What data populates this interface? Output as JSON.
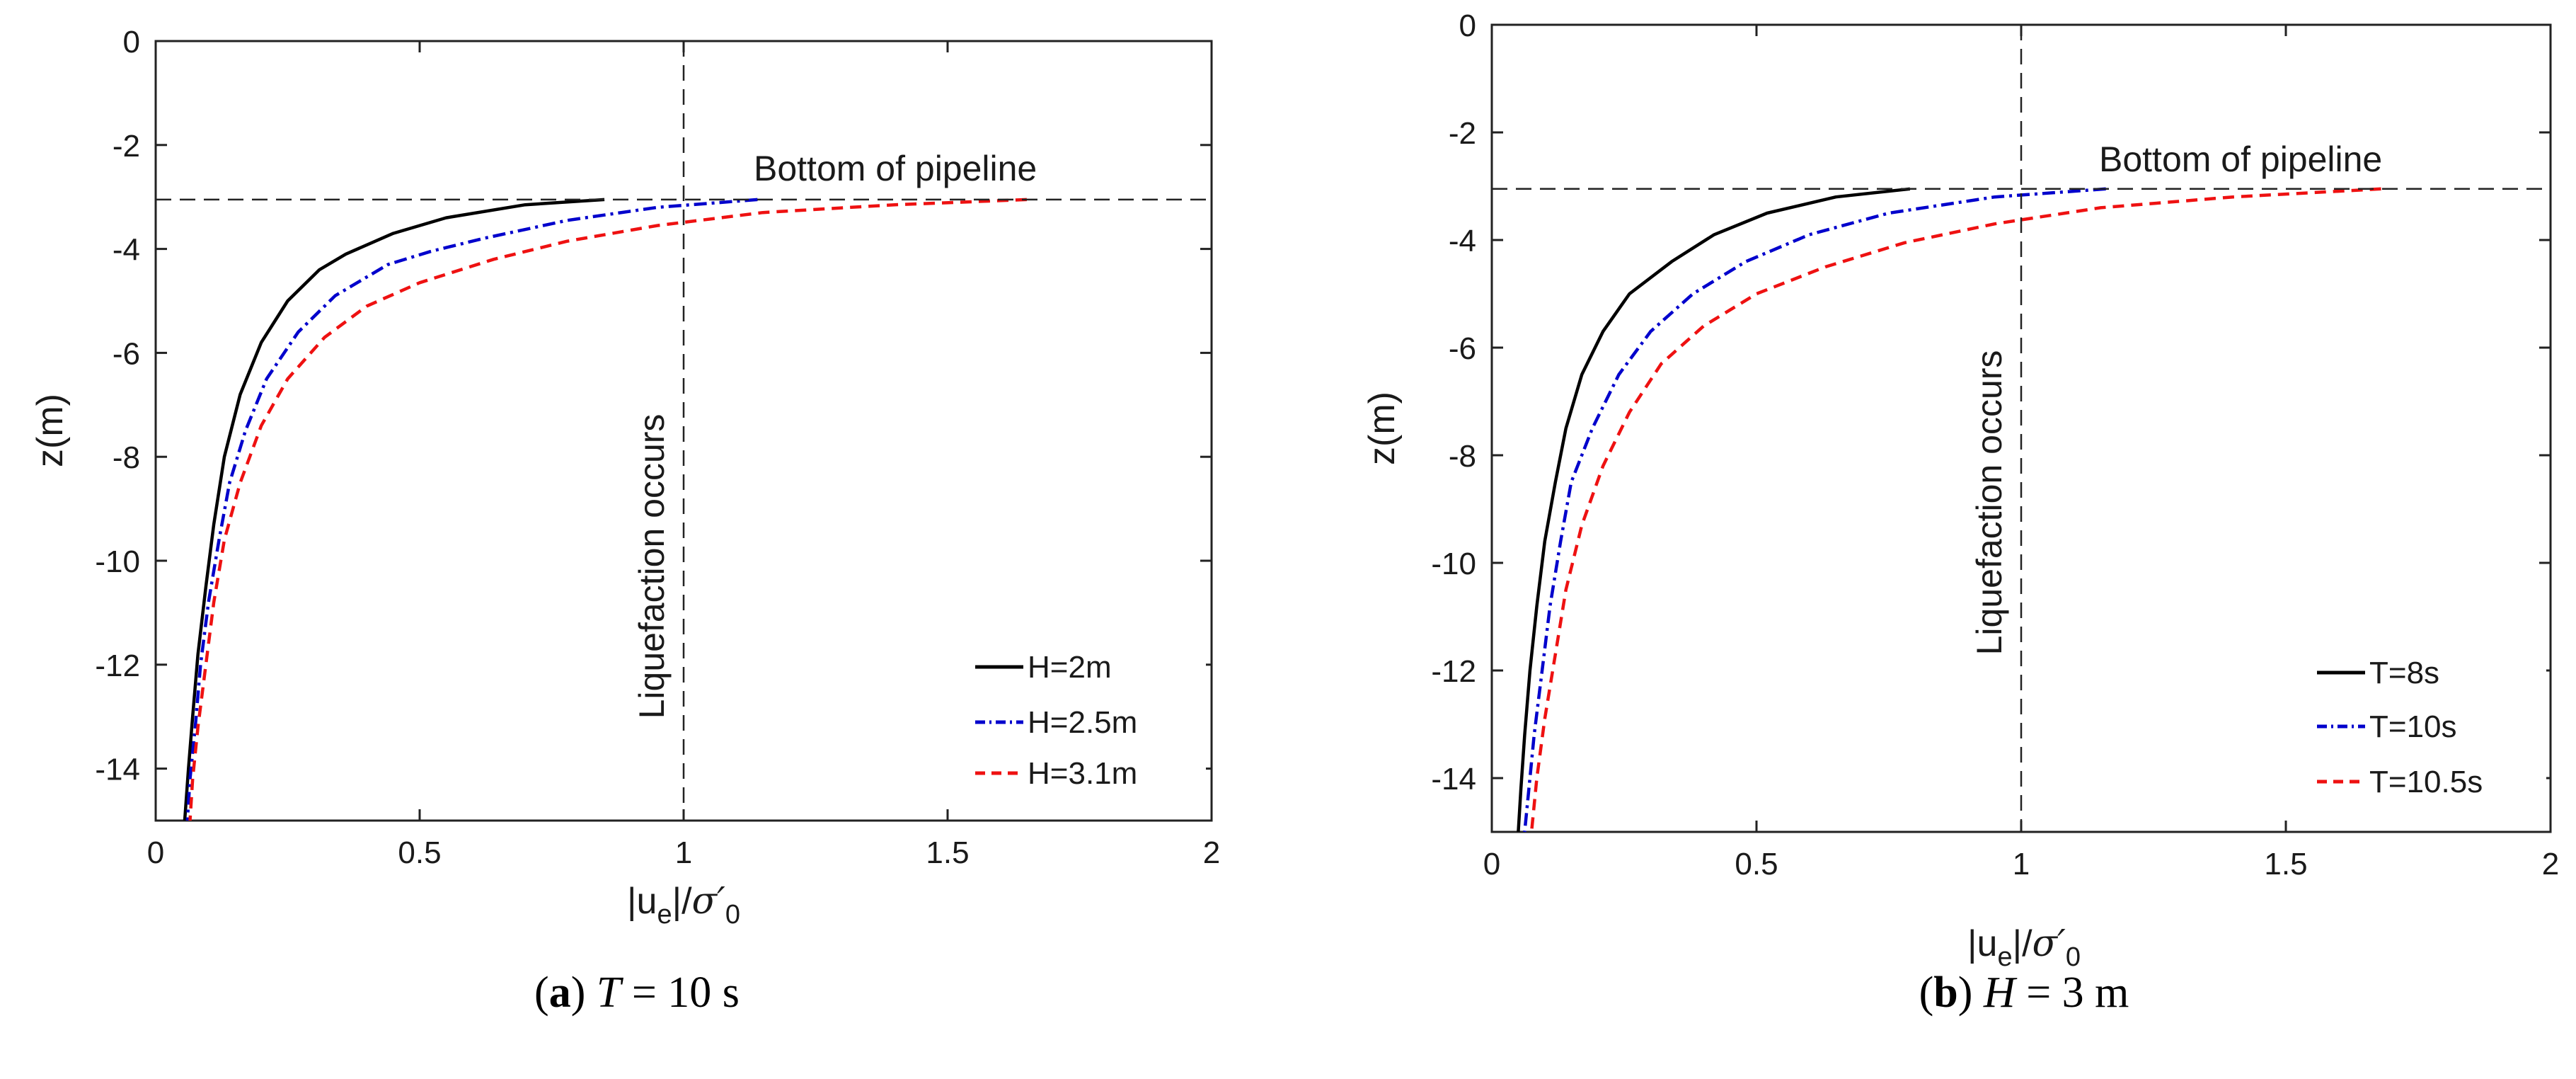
{
  "chart_data": [
    {
      "type": "line",
      "panel": "a",
      "caption": {
        "letter": "a",
        "variable": "T",
        "equals": "= 10 s"
      },
      "xlabel": {
        "abs_open": "|u",
        "sub_e": "e",
        "abs_close": "|/",
        "sigma": "σ′",
        "sub_0": "0"
      },
      "ylabel": "z(m)",
      "xlim": [
        0,
        2
      ],
      "ylim": [
        -15,
        0
      ],
      "xticks": [
        0,
        0.5,
        1,
        1.5,
        2
      ],
      "xtick_labels": [
        "0",
        "0.5",
        "1",
        "1.5",
        "2"
      ],
      "yticks": [
        0,
        -2,
        -4,
        -6,
        -8,
        -10,
        -12,
        -14
      ],
      "ytick_labels": [
        "0",
        "-2",
        "-4",
        "-6",
        "-8",
        "-10",
        "-12",
        "-14"
      ],
      "reference_lines": {
        "liquefaction_x": 1,
        "pipeline_bottom_z": -3.05
      },
      "annotations": {
        "pipeline": "Bottom of pipeline",
        "liquefaction": "Liquefaction occurs"
      },
      "legend_position": "bottom-right",
      "series": [
        {
          "name": "H=2m",
          "color": "#000000",
          "style": "solid",
          "points": [
            [
              0.85,
              -3.05
            ],
            [
              0.7,
              -3.15
            ],
            [
              0.55,
              -3.4
            ],
            [
              0.45,
              -3.7
            ],
            [
              0.36,
              -4.1
            ],
            [
              0.31,
              -4.4
            ],
            [
              0.25,
              -5.0
            ],
            [
              0.2,
              -5.8
            ],
            [
              0.16,
              -6.8
            ],
            [
              0.13,
              -8.0
            ],
            [
              0.11,
              -9.3
            ],
            [
              0.095,
              -10.5
            ],
            [
              0.08,
              -11.8
            ],
            [
              0.07,
              -13.0
            ],
            [
              0.062,
              -14.0
            ],
            [
              0.055,
              -15.0
            ]
          ]
        },
        {
          "name": "H=2.5m",
          "color": "#0000cc",
          "style": "dashdot",
          "points": [
            [
              1.14,
              -3.05
            ],
            [
              0.95,
              -3.2
            ],
            [
              0.78,
              -3.45
            ],
            [
              0.62,
              -3.8
            ],
            [
              0.52,
              -4.05
            ],
            [
              0.44,
              -4.3
            ],
            [
              0.34,
              -4.9
            ],
            [
              0.27,
              -5.6
            ],
            [
              0.21,
              -6.5
            ],
            [
              0.17,
              -7.5
            ],
            [
              0.14,
              -8.5
            ],
            [
              0.12,
              -9.6
            ],
            [
              0.1,
              -10.8
            ],
            [
              0.085,
              -12.0
            ],
            [
              0.075,
              -13.2
            ],
            [
              0.065,
              -14.2
            ],
            [
              0.06,
              -15.0
            ]
          ]
        },
        {
          "name": "H=3.1m",
          "color": "#ee1111",
          "style": "dashed",
          "points": [
            [
              1.65,
              -3.05
            ],
            [
              1.4,
              -3.15
            ],
            [
              1.15,
              -3.3
            ],
            [
              0.95,
              -3.55
            ],
            [
              0.78,
              -3.85
            ],
            [
              0.64,
              -4.2
            ],
            [
              0.5,
              -4.65
            ],
            [
              0.4,
              -5.1
            ],
            [
              0.32,
              -5.7
            ],
            [
              0.25,
              -6.5
            ],
            [
              0.2,
              -7.4
            ],
            [
              0.16,
              -8.5
            ],
            [
              0.13,
              -9.6
            ],
            [
              0.11,
              -10.8
            ],
            [
              0.095,
              -12.0
            ],
            [
              0.08,
              -13.2
            ],
            [
              0.07,
              -14.2
            ],
            [
              0.065,
              -15.0
            ]
          ]
        }
      ]
    },
    {
      "type": "line",
      "panel": "b",
      "caption": {
        "letter": "b",
        "variable": "H",
        "equals": "= 3 m"
      },
      "xlabel": {
        "abs_open": "|u",
        "sub_e": "e",
        "abs_close": "|/",
        "sigma": "σ′",
        "sub_0": "0"
      },
      "ylabel": "z(m)",
      "xlim": [
        0,
        2
      ],
      "ylim": [
        -15,
        0
      ],
      "xticks": [
        0,
        0.5,
        1,
        1.5,
        2
      ],
      "xtick_labels": [
        "0",
        "0.5",
        "1",
        "1.5",
        "2"
      ],
      "yticks": [
        0,
        -2,
        -4,
        -6,
        -8,
        -10,
        -12,
        -14
      ],
      "ytick_labels": [
        "0",
        "-2",
        "-4",
        "-6",
        "-8",
        "-10",
        "-12",
        "-14"
      ],
      "reference_lines": {
        "liquefaction_x": 1,
        "pipeline_bottom_z": -3.05
      },
      "annotations": {
        "pipeline": "Bottom of pipeline",
        "liquefaction": "Liquefaction occurs"
      },
      "legend_position": "bottom-right",
      "series": [
        {
          "name": "T=8s",
          "color": "#000000",
          "style": "solid",
          "points": [
            [
              0.79,
              -3.05
            ],
            [
              0.65,
              -3.2
            ],
            [
              0.52,
              -3.5
            ],
            [
              0.42,
              -3.9
            ],
            [
              0.34,
              -4.4
            ],
            [
              0.26,
              -5.0
            ],
            [
              0.21,
              -5.7
            ],
            [
              0.17,
              -6.5
            ],
            [
              0.14,
              -7.5
            ],
            [
              0.12,
              -8.5
            ],
            [
              0.1,
              -9.6
            ],
            [
              0.085,
              -10.8
            ],
            [
              0.072,
              -12.0
            ],
            [
              0.062,
              -13.2
            ],
            [
              0.055,
              -14.2
            ],
            [
              0.05,
              -15.0
            ]
          ]
        },
        {
          "name": "T=10s",
          "color": "#0000cc",
          "style": "dashdot",
          "points": [
            [
              1.16,
              -3.05
            ],
            [
              0.95,
              -3.2
            ],
            [
              0.75,
              -3.5
            ],
            [
              0.6,
              -3.9
            ],
            [
              0.48,
              -4.4
            ],
            [
              0.38,
              -5.0
            ],
            [
              0.3,
              -5.7
            ],
            [
              0.24,
              -6.5
            ],
            [
              0.19,
              -7.5
            ],
            [
              0.15,
              -8.5
            ],
            [
              0.13,
              -9.6
            ],
            [
              0.11,
              -10.8
            ],
            [
              0.095,
              -12.0
            ],
            [
              0.08,
              -13.2
            ],
            [
              0.07,
              -14.2
            ],
            [
              0.062,
              -15.0
            ]
          ]
        },
        {
          "name": "T=10.5s",
          "color": "#ee1111",
          "style": "dashed",
          "points": [
            [
              1.68,
              -3.05
            ],
            [
              1.4,
              -3.2
            ],
            [
              1.15,
              -3.4
            ],
            [
              0.95,
              -3.7
            ],
            [
              0.78,
              -4.05
            ],
            [
              0.63,
              -4.5
            ],
            [
              0.5,
              -5.0
            ],
            [
              0.4,
              -5.6
            ],
            [
              0.32,
              -6.3
            ],
            [
              0.26,
              -7.2
            ],
            [
              0.21,
              -8.2
            ],
            [
              0.17,
              -9.3
            ],
            [
              0.14,
              -10.5
            ],
            [
              0.12,
              -11.7
            ],
            [
              0.1,
              -12.9
            ],
            [
              0.085,
              -14.0
            ],
            [
              0.075,
              -15.0
            ]
          ]
        }
      ]
    }
  ]
}
